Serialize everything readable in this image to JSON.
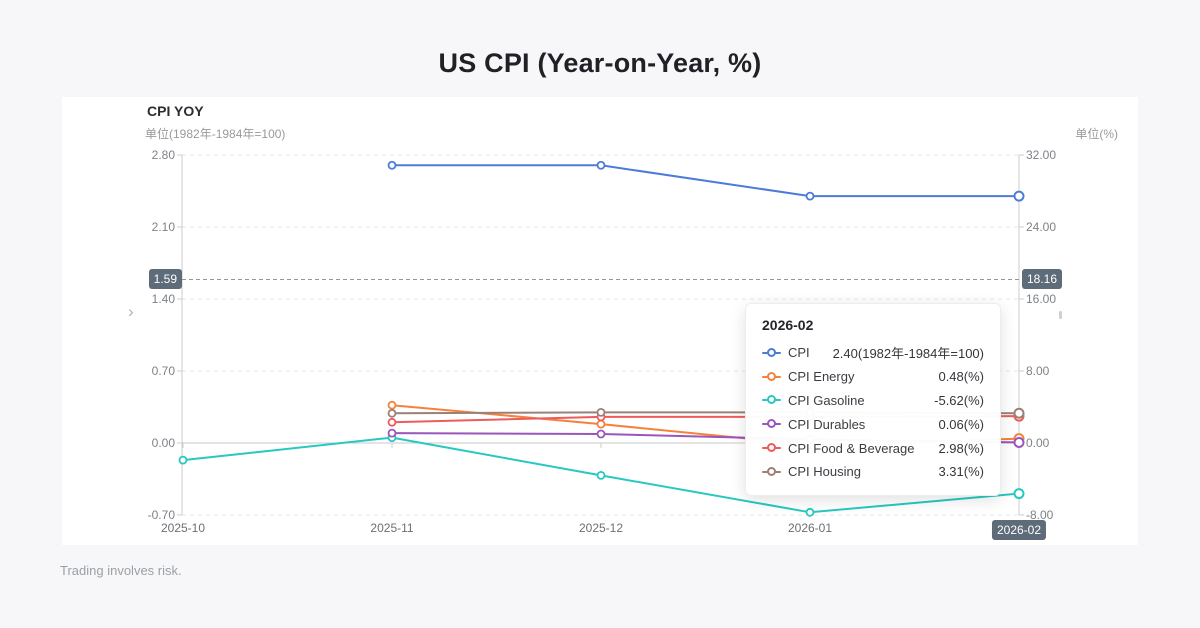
{
  "page": {
    "title": "US CPI (Year-on-Year, %)",
    "footer": "Trading involves risk."
  },
  "chart": {
    "title": "CPI YOY",
    "left_axis_unit": "单位(1982年-1984年=100)",
    "right_axis_unit": "单位(%)",
    "left_arrow": "›",
    "crosshair": {
      "left_value": "1.59",
      "right_value": "18.16",
      "x_value": "2026-02"
    },
    "colors": {
      "badge_bg": "#5e6b78",
      "grid_line": "#e4e5e8",
      "zero_line": "#c9cacd",
      "axis_line": "#cccccc",
      "crosshair_line": "#8f97a0"
    }
  },
  "chart_data": {
    "type": "line",
    "title": "CPI YOY",
    "categories": [
      "2025-10",
      "2025-11",
      "2025-12",
      "2026-01",
      "2026-02"
    ],
    "left_axis": {
      "min": -0.7,
      "max": 2.8,
      "ticks": [
        "2.80",
        "2.10",
        "1.40",
        "0.70",
        "0.00",
        "-0.70"
      ],
      "unit": "1982年-1984年=100"
    },
    "right_axis": {
      "min": -8,
      "max": 32,
      "ticks": [
        "32.00",
        "24.00",
        "16.00",
        "8.00",
        "0.00",
        "-8.00"
      ],
      "unit": "%"
    },
    "grid": "horizontal-dashed",
    "legend_position": "tooltip-only",
    "series": [
      {
        "name": "CPI",
        "axis": "left",
        "color": "#4d7bd8",
        "values": [
          null,
          2.7,
          2.7,
          2.4,
          2.4
        ]
      },
      {
        "name": "CPI Energy",
        "axis": "right",
        "color": "#f5823b",
        "values": [
          null,
          4.2,
          2.1,
          -0.2,
          0.48
        ]
      },
      {
        "name": "CPI Gasoline",
        "axis": "right",
        "color": "#27c8c1",
        "values": [
          -1.9,
          0.6,
          -3.6,
          -7.7,
          -5.62
        ]
      },
      {
        "name": "CPI Durables",
        "axis": "right",
        "color": "#9b55bb",
        "values": [
          null,
          1.1,
          1.0,
          0.4,
          0.06
        ]
      },
      {
        "name": "CPI Food & Beverage",
        "axis": "right",
        "color": "#ee5b5b",
        "values": [
          null,
          2.3,
          2.9,
          2.9,
          2.98
        ]
      },
      {
        "name": "CPI Housing",
        "axis": "right",
        "color": "#9c8076",
        "values": [
          null,
          3.3,
          3.4,
          3.4,
          3.31
        ]
      }
    ]
  },
  "tooltip": {
    "header": "2026-02",
    "rows": [
      {
        "name": "CPI",
        "value": "2.40(1982年-1984年=100)",
        "color": "#4d7bd8"
      },
      {
        "name": "CPI Energy",
        "value": "0.48(%)",
        "color": "#f5823b"
      },
      {
        "name": "CPI Gasoline",
        "value": "-5.62(%)",
        "color": "#27c8c1"
      },
      {
        "name": "CPI Durables",
        "value": "0.06(%)",
        "color": "#9b55bb"
      },
      {
        "name": "CPI Food & Beverage",
        "value": "2.98(%)",
        "color": "#ee5b5b"
      },
      {
        "name": "CPI Housing",
        "value": "3.31(%)",
        "color": "#9c8076"
      }
    ]
  }
}
